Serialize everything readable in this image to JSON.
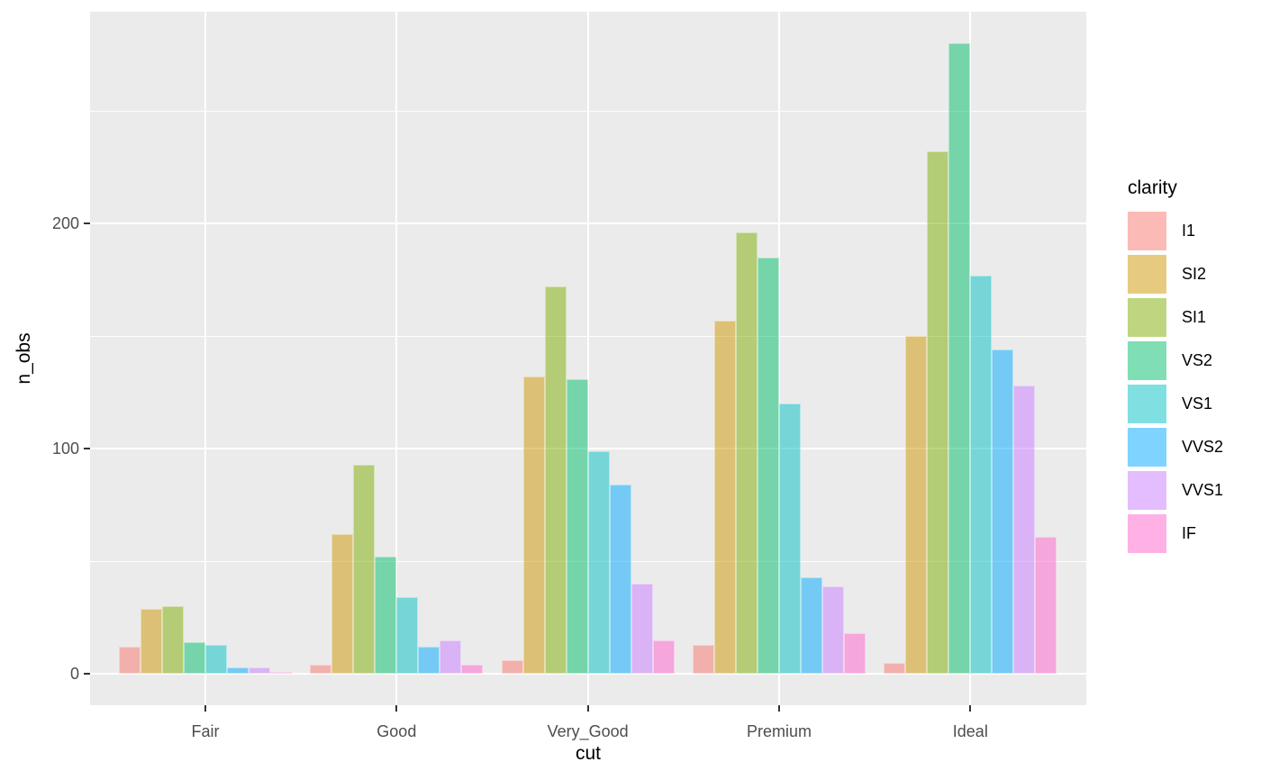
{
  "chart_data": {
    "type": "bar",
    "title": "",
    "xlabel": "cut",
    "ylabel": "n_obs",
    "legend_title": "clarity",
    "legend_position": "right",
    "categories": [
      "Fair",
      "Good",
      "Very_Good",
      "Premium",
      "Ideal"
    ],
    "series": [
      {
        "name": "I1",
        "color": "#F8766D",
        "values": [
          12,
          4,
          6,
          13,
          5
        ]
      },
      {
        "name": "SI2",
        "color": "#CD9600",
        "values": [
          29,
          62,
          132,
          157,
          150
        ]
      },
      {
        "name": "SI1",
        "color": "#7CAE00",
        "values": [
          30,
          93,
          172,
          196,
          232
        ]
      },
      {
        "name": "VS2",
        "color": "#00BE67",
        "values": [
          14,
          52,
          131,
          185,
          280
        ]
      },
      {
        "name": "VS1",
        "color": "#00BFC4",
        "values": [
          13,
          34,
          99,
          120,
          177
        ]
      },
      {
        "name": "VVS2",
        "color": "#00A9FF",
        "values": [
          3,
          12,
          84,
          43,
          144
        ]
      },
      {
        "name": "VVS1",
        "color": "#C77CFF",
        "values": [
          3,
          15,
          40,
          39,
          128
        ]
      },
      {
        "name": "IF",
        "color": "#FF61CC",
        "values": [
          1,
          4,
          15,
          18,
          61
        ]
      }
    ],
    "bar_alpha": 0.5,
    "y_ticks": [
      0,
      100,
      200
    ],
    "y_minor_ticks": [
      50,
      150,
      250
    ],
    "ylim": [
      -14,
      294
    ],
    "grid": true,
    "panel_bg": "#EBEBEB",
    "grid_color": "#FFFFFF",
    "tick_label_color": "#4D4D4D",
    "tick_mark_color": "#333333"
  }
}
